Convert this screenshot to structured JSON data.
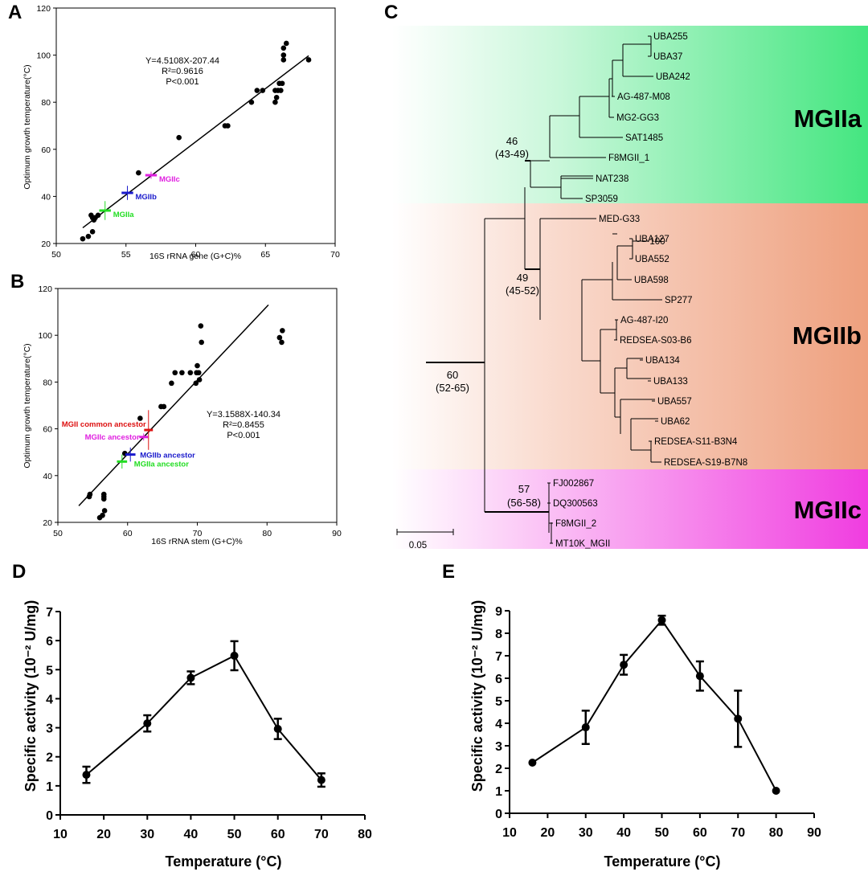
{
  "panels": {
    "a": "A",
    "b": "B",
    "c": "C",
    "d": "D",
    "e": "E"
  },
  "chart_data": [
    {
      "id": "A",
      "type": "scatter",
      "title": "",
      "xlabel": "16S rRNA gene (G+C)%",
      "ylabel": "Optimum growth temperature(°C)",
      "xlim": [
        50,
        70
      ],
      "ylim": [
        20,
        120
      ],
      "xticks": [
        "50",
        "55",
        "60",
        "65",
        "70"
      ],
      "yticks": [
        "20",
        "40",
        "60",
        "80",
        "100",
        "120"
      ],
      "grid": false,
      "points": [
        {
          "x": 51.9,
          "y": 22
        },
        {
          "x": 52.3,
          "y": 23
        },
        {
          "x": 52.6,
          "y": 25
        },
        {
          "x": 52.5,
          "y": 32
        },
        {
          "x": 52.6,
          "y": 31
        },
        {
          "x": 52.7,
          "y": 30
        },
        {
          "x": 52.8,
          "y": 31
        },
        {
          "x": 53.0,
          "y": 32
        },
        {
          "x": 55.9,
          "y": 50
        },
        {
          "x": 58.8,
          "y": 65
        },
        {
          "x": 62.1,
          "y": 70
        },
        {
          "x": 62.3,
          "y": 70
        },
        {
          "x": 64.0,
          "y": 80
        },
        {
          "x": 64.4,
          "y": 85
        },
        {
          "x": 64.8,
          "y": 85
        },
        {
          "x": 65.7,
          "y": 80
        },
        {
          "x": 65.8,
          "y": 82
        },
        {
          "x": 65.7,
          "y": 85
        },
        {
          "x": 65.9,
          "y": 85
        },
        {
          "x": 66.1,
          "y": 85
        },
        {
          "x": 66.0,
          "y": 88
        },
        {
          "x": 66.2,
          "y": 88
        },
        {
          "x": 66.3,
          "y": 98
        },
        {
          "x": 66.3,
          "y": 100
        },
        {
          "x": 66.3,
          "y": 103
        },
        {
          "x": 66.5,
          "y": 105
        },
        {
          "x": 68.1,
          "y": 98
        }
      ],
      "fit": {
        "slope": 4.5108,
        "intercept": -207.44,
        "x_range": [
          51.9,
          68.1
        ]
      },
      "annotations": [
        "Y=4.5108X-207.44",
        "R²=0.9616",
        "P<0.001"
      ],
      "markers": [
        {
          "label": "MGIIa",
          "x": 53.5,
          "y": 34,
          "xerr": 0.3,
          "yerr": 4,
          "color": "#22dd22"
        },
        {
          "label": "MGIIb",
          "x": 55.1,
          "y": 41.5,
          "xerr": 0.3,
          "yerr": 3,
          "color": "#1a1acc"
        },
        {
          "label": "MGIIc",
          "x": 56.8,
          "y": 49,
          "xerr": 0.3,
          "yerr": 1.5,
          "color": "#e020e0"
        }
      ]
    },
    {
      "id": "B",
      "type": "scatter",
      "title": "",
      "xlabel": "16S rRNA stem (G+C)%",
      "ylabel": "Optimum growth temperature(°C)",
      "xlim": [
        50,
        90
      ],
      "ylim": [
        20,
        120
      ],
      "xticks": [
        "50",
        "60",
        "70",
        "80",
        "90"
      ],
      "yticks": [
        "20",
        "40",
        "60",
        "80",
        "100",
        "120"
      ],
      "grid": false,
      "points": [
        {
          "x": 54.5,
          "y": 31
        },
        {
          "x": 54.6,
          "y": 32
        },
        {
          "x": 56.0,
          "y": 22
        },
        {
          "x": 56.4,
          "y": 23
        },
        {
          "x": 56.7,
          "y": 25
        },
        {
          "x": 56.6,
          "y": 30
        },
        {
          "x": 56.6,
          "y": 31
        },
        {
          "x": 56.6,
          "y": 32
        },
        {
          "x": 59.6,
          "y": 49.5
        },
        {
          "x": 61.8,
          "y": 64.5
        },
        {
          "x": 64.8,
          "y": 69.5
        },
        {
          "x": 65.2,
          "y": 69.5
        },
        {
          "x": 66.3,
          "y": 79.5
        },
        {
          "x": 66.8,
          "y": 84
        },
        {
          "x": 67.8,
          "y": 84
        },
        {
          "x": 69.0,
          "y": 84
        },
        {
          "x": 69.8,
          "y": 79.5
        },
        {
          "x": 69.9,
          "y": 84
        },
        {
          "x": 70.2,
          "y": 84
        },
        {
          "x": 70.0,
          "y": 87
        },
        {
          "x": 70.3,
          "y": 81
        },
        {
          "x": 70.5,
          "y": 104
        },
        {
          "x": 70.6,
          "y": 97
        },
        {
          "x": 81.8,
          "y": 99
        },
        {
          "x": 82.1,
          "y": 97
        },
        {
          "x": 82.2,
          "y": 102
        }
      ],
      "fit": {
        "slope": 3.1588,
        "intercept": -140.34,
        "x_range": [
          53.0,
          80.2
        ]
      },
      "annotations": [
        "Y=3.1588X-140.34",
        "R²=0.8455",
        "P<0.001"
      ],
      "markers": [
        {
          "label": "MGII common ancestor",
          "x": 63.0,
          "y": 59.5,
          "xerr": 0.4,
          "yerr": 8.5,
          "color": "#dd1111"
        },
        {
          "label": "MGIIc ancestor",
          "x": 62.3,
          "y": 56.5,
          "xerr": 0.4,
          "yerr": 1.5,
          "color": "#e020e0"
        },
        {
          "label": "MGIIb ancestor",
          "x": 60.4,
          "y": 49,
          "xerr": 0.5,
          "yerr": 3,
          "color": "#1a1acc"
        },
        {
          "label": "MGIIa ancestor",
          "x": 59.2,
          "y": 46,
          "xerr": 0.5,
          "yerr": 3,
          "color": "#22dd22"
        }
      ]
    },
    {
      "id": "D",
      "type": "line",
      "title": "",
      "xlabel": "Temperature (°C)",
      "ylabel": "Specific activity (10⁻² U/mg)",
      "xlim": [
        10,
        80
      ],
      "ylim": [
        0,
        7
      ],
      "xticks": [
        "10",
        "20",
        "30",
        "40",
        "50",
        "60",
        "70",
        "80"
      ],
      "yticks": [
        "0",
        "1",
        "2",
        "3",
        "4",
        "5",
        "6",
        "7"
      ],
      "grid": false,
      "x": [
        16,
        30,
        40,
        50,
        60,
        70
      ],
      "series": [
        {
          "name": "Specific activity",
          "values": [
            1.38,
            3.15,
            4.72,
            5.48,
            2.96,
            1.2
          ],
          "errors": [
            0.28,
            0.28,
            0.22,
            0.5,
            0.35,
            0.23
          ]
        }
      ]
    },
    {
      "id": "E",
      "type": "line",
      "title": "",
      "xlabel": "Temperature (°C)",
      "ylabel": "Specific activity (10⁻² U/mg)",
      "xlim": [
        10,
        90
      ],
      "ylim": [
        0,
        9
      ],
      "xticks": [
        "10",
        "20",
        "30",
        "40",
        "50",
        "60",
        "70",
        "80",
        "90"
      ],
      "yticks": [
        "0",
        "1",
        "2",
        "3",
        "4",
        "5",
        "6",
        "7",
        "8",
        "9"
      ],
      "grid": false,
      "x": [
        16,
        30,
        40,
        50,
        60,
        70,
        80
      ],
      "series": [
        {
          "name": "Specific activity",
          "values": [
            2.25,
            3.82,
            6.6,
            8.58,
            6.1,
            4.2,
            1.0
          ],
          "errors": [
            0.05,
            0.74,
            0.44,
            0.2,
            0.65,
            1.25,
            0.03
          ]
        }
      ]
    }
  ],
  "tree": {
    "clades": [
      {
        "name": "MGIIa",
        "color": "#4de88a"
      },
      {
        "name": "MGIIb",
        "color": "#eea080"
      },
      {
        "name": "MGIIc",
        "color": "#f040e0"
      }
    ],
    "leaves": [
      "UBA255",
      "UBA37",
      "UBA242",
      "AG-487-M08",
      "MG2-GG3",
      "SAT1485",
      "F8MGII_1",
      "NAT238",
      "SP3059",
      "MED-G33",
      "UBA127",
      "UBA552",
      "UBA598",
      "SP277",
      "AG-487-I20",
      "REDSEA-S03-B6",
      "UBA134",
      "UBA133",
      "UBA557",
      "UBA62",
      "REDSEA-S11-B3N4",
      "REDSEA-S19-B7N8",
      "FJ002867",
      "DQ300563",
      "F8MGII_2",
      "MT10K_MGII"
    ],
    "node_labels": [
      {
        "value": "46",
        "range": "(43-49)"
      },
      {
        "value": "49",
        "range": "(45-52)"
      },
      {
        "value": "60",
        "range": "(52-65)"
      },
      {
        "value": "57",
        "range": "(56-58)"
      },
      {
        "value": "100",
        "range": ""
      }
    ],
    "scale_bar": "0.05"
  }
}
